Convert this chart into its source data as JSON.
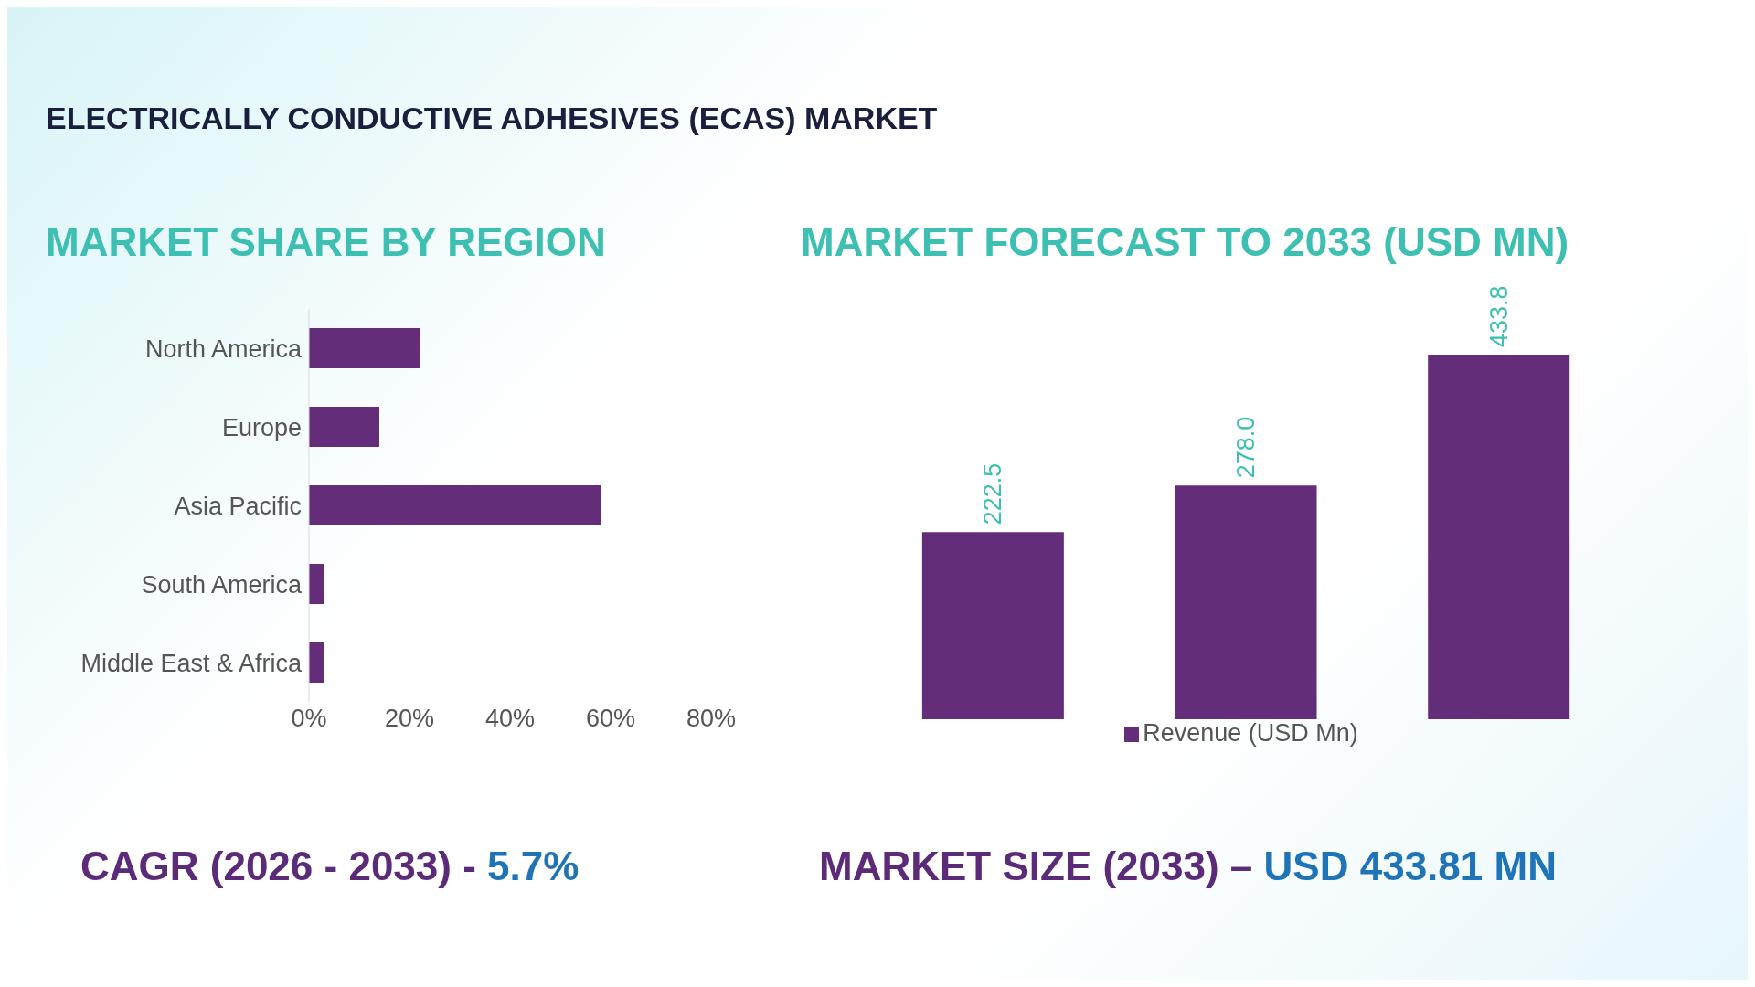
{
  "chart_data": [
    {
      "type": "bar",
      "orientation": "horizontal",
      "title": "MARKET SHARE BY REGION",
      "annotations": [
        "ELECTRICALLY CONDUCTIVE ADHESIVES (ECAS) MARKET",
        "CAGR (2026 - 2033) - 5.7%"
      ],
      "categories": [
        "North America",
        "Europe",
        "Asia Pacific",
        "South America",
        "Middle East & Africa"
      ],
      "values": [
        22,
        14,
        58,
        3,
        3
      ],
      "color": "#632d7a",
      "xlim": [
        0,
        80
      ],
      "xticks": [
        {
          "value": 0,
          "label": "0%"
        },
        {
          "value": 20,
          "label": "20%"
        },
        {
          "value": 40,
          "label": "40%"
        },
        {
          "value": 60,
          "label": "60%"
        },
        {
          "value": 80,
          "label": "80%"
        }
      ],
      "grid": false,
      "legend": false
    },
    {
      "type": "bar",
      "title": "MARKET FORECAST TO 2033 (USD MN)",
      "annotations": [
        "MARKET SIZE (2033) – USD 433.81 MN"
      ],
      "categories": [
        null,
        null,
        null
      ],
      "series": [
        {
          "name": "Revenue (USD Mn)",
          "color": "#632d7a",
          "values": [
            222.5,
            278.0,
            433.8
          ],
          "value_labels": [
            "222.5",
            "278.0",
            "433.8"
          ]
        }
      ],
      "grid": false,
      "legend": "bottom"
    }
  ]
}
